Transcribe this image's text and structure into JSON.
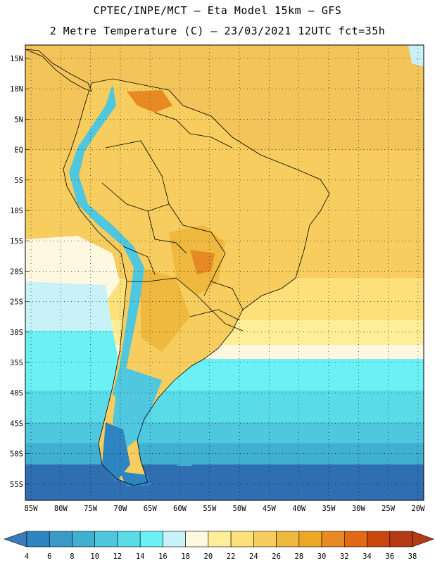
{
  "header": {
    "line1": "CPTEC/INPE/MCT –  Eta Model 15km – GFS",
    "line2": "2 Metre Temperature (C) – 23/03/2021 12UTC fct=35h"
  },
  "lat_labels": [
    "15N",
    "10N",
    "5N",
    "EQ",
    "5S",
    "10S",
    "15S",
    "20S",
    "25S",
    "30S",
    "35S",
    "40S",
    "45S",
    "50S",
    "55S"
  ],
  "lon_labels": [
    "85W",
    "80W",
    "75W",
    "70W",
    "65W",
    "60W",
    "55W",
    "50W",
    "45W",
    "40W",
    "35W",
    "30W",
    "25W",
    "20W"
  ],
  "legend": {
    "values": [
      "4",
      "6",
      "8",
      "10",
      "12",
      "14",
      "16",
      "18",
      "20",
      "22",
      "24",
      "26",
      "28",
      "30",
      "32",
      "34",
      "36",
      "38"
    ],
    "colors": [
      "#3a7ab8",
      "#2f84c2",
      "#3a9bc9",
      "#3fb0d2",
      "#4ec7df",
      "#5adbe8",
      "#6bf0f4",
      "#c8f2f8",
      "#fff8e0",
      "#ffee98",
      "#fde07a",
      "#f6cd5e",
      "#efb83f",
      "#eda825",
      "#e88a24",
      "#e36a14",
      "#c9470d",
      "#b33a12"
    ]
  }
}
